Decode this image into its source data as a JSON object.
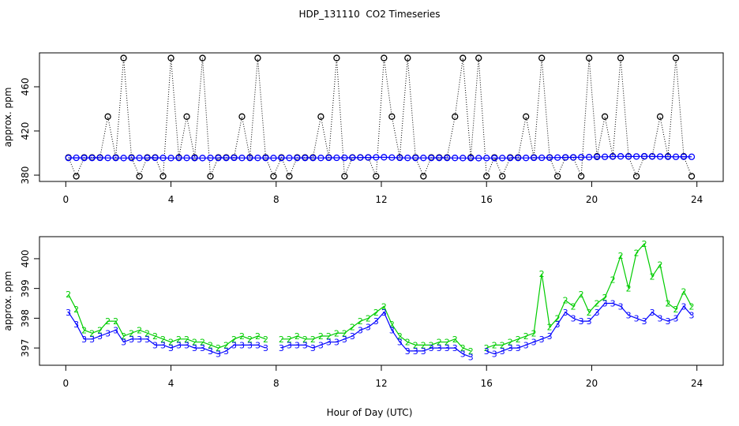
{
  "chart_data": [
    {
      "type": "scatter",
      "title": "HDP_131110  CO2 Timeseries",
      "ylabel": "approx. ppm",
      "x": [
        0.1,
        0.4,
        0.7,
        1.0,
        1.3,
        1.6,
        1.9,
        2.2,
        2.5,
        2.8,
        3.1,
        3.4,
        3.7,
        4.0,
        4.3,
        4.6,
        4.9,
        5.2,
        5.5,
        5.8,
        6.1,
        6.4,
        6.7,
        7.0,
        7.3,
        7.6,
        7.9,
        8.2,
        8.5,
        8.8,
        9.1,
        9.4,
        9.7,
        10.0,
        10.3,
        10.6,
        10.9,
        11.2,
        11.5,
        11.8,
        12.1,
        12.4,
        12.7,
        13.0,
        13.3,
        13.6,
        13.9,
        14.2,
        14.5,
        14.8,
        15.1,
        15.4,
        15.7,
        16.0,
        16.3,
        16.6,
        16.9,
        17.2,
        17.5,
        17.8,
        18.1,
        18.4,
        18.7,
        19.0,
        19.3,
        19.6,
        19.9,
        20.2,
        20.5,
        20.8,
        21.1,
        21.4,
        21.7,
        22.0,
        22.3,
        22.6,
        22.9,
        23.2,
        23.5,
        23.8
      ],
      "xlim": [
        -1,
        25
      ],
      "xticks": [
        0,
        4,
        8,
        12,
        16,
        20,
        24
      ],
      "ylim": [
        374.3,
        490.7
      ],
      "yticks": [
        380,
        420,
        460
      ],
      "series": [
        {
          "color": "#000000",
          "line": "dotted",
          "marker_shape": "circle",
          "values": [
            396,
            379,
            396,
            396,
            396,
            433,
            396,
            486,
            396,
            379,
            396,
            396,
            379,
            486,
            396,
            433,
            396,
            486,
            379,
            396,
            396,
            396,
            433,
            396,
            486,
            396,
            379,
            396,
            379,
            396,
            396,
            396,
            433,
            396,
            486,
            379,
            396,
            396,
            396,
            379,
            486,
            433,
            396,
            486,
            396,
            379,
            396,
            396,
            396,
            433,
            486,
            396,
            486,
            379,
            396,
            379,
            396,
            396,
            433,
            396,
            486,
            396,
            379,
            396,
            396,
            379,
            486,
            397,
            433,
            397,
            486,
            397,
            379,
            397,
            397,
            433,
            397,
            486,
            397,
            379
          ]
        },
        {
          "color": "#0000ff",
          "line": "solid",
          "marker_shape": "circle",
          "values": [
            395.6,
            395.7,
            395.6,
            395.6,
            395.7,
            395.6,
            395.6,
            395.5,
            395.6,
            395.6,
            395.6,
            395.7,
            395.6,
            395.5,
            395.6,
            395.6,
            395.5,
            395.5,
            395.6,
            395.6,
            395.6,
            395.7,
            395.6,
            395.6,
            395.6,
            395.6,
            395.5,
            395.6,
            395.6,
            395.6,
            395.6,
            395.6,
            395.6,
            395.7,
            395.7,
            395.7,
            395.8,
            395.9,
            396.0,
            396.1,
            396.2,
            395.9,
            395.7,
            395.6,
            395.6,
            395.6,
            395.6,
            395.6,
            395.6,
            395.6,
            395.5,
            395.5,
            395.4,
            395.5,
            395.5,
            395.5,
            395.6,
            395.6,
            395.6,
            395.7,
            395.7,
            395.8,
            395.9,
            396.1,
            396.1,
            396.2,
            396.3,
            396.5,
            396.6,
            396.8,
            397.0,
            396.9,
            396.9,
            397.0,
            396.9,
            396.8,
            396.7,
            396.6,
            396.7,
            396.6
          ]
        }
      ]
    },
    {
      "type": "scatter",
      "ylabel": "approx. ppm",
      "xlabel": "Hour of Day (UTC)",
      "x": [
        0.1,
        0.4,
        0.7,
        1.0,
        1.3,
        1.6,
        1.9,
        2.2,
        2.5,
        2.8,
        3.1,
        3.4,
        3.7,
        4.0,
        4.3,
        4.6,
        4.9,
        5.2,
        5.5,
        5.8,
        6.1,
        6.4,
        6.7,
        7.0,
        7.3,
        7.6,
        7.9,
        8.2,
        8.5,
        8.8,
        9.1,
        9.4,
        9.7,
        10.0,
        10.3,
        10.6,
        10.9,
        11.2,
        11.5,
        11.8,
        12.1,
        12.4,
        12.7,
        13.0,
        13.3,
        13.6,
        13.9,
        14.2,
        14.5,
        14.8,
        15.1,
        15.4,
        15.7,
        16.0,
        16.3,
        16.6,
        16.9,
        17.2,
        17.5,
        17.8,
        18.1,
        18.4,
        18.7,
        19.0,
        19.3,
        19.6,
        19.9,
        20.2,
        20.5,
        20.8,
        21.1,
        21.4,
        21.7,
        22.0,
        22.3,
        22.6,
        22.9,
        23.2,
        23.5,
        23.8
      ],
      "xlim": [
        -1,
        25
      ],
      "xticks": [
        0,
        4,
        8,
        12,
        16,
        20,
        24
      ],
      "ylim": [
        396.42,
        400.74
      ],
      "yticks": [
        397,
        398,
        399,
        400
      ],
      "series": [
        {
          "color": "#00cc00",
          "line": "solid",
          "marker_text": "2",
          "values": [
            398.8,
            398.3,
            397.6,
            397.5,
            397.6,
            397.9,
            397.9,
            397.4,
            397.5,
            397.6,
            397.5,
            397.4,
            397.3,
            397.2,
            397.3,
            397.3,
            397.2,
            397.2,
            397.1,
            397.0,
            397.1,
            397.3,
            397.4,
            397.3,
            397.4,
            397.3,
            null,
            397.3,
            397.3,
            397.4,
            397.3,
            397.3,
            397.4,
            397.4,
            397.5,
            397.5,
            397.7,
            397.9,
            398.0,
            398.2,
            398.4,
            397.8,
            397.4,
            397.2,
            397.1,
            397.1,
            397.1,
            397.2,
            397.2,
            397.3,
            397.0,
            396.9,
            null,
            397.0,
            397.1,
            397.1,
            397.2,
            397.3,
            397.4,
            397.5,
            399.5,
            397.7,
            398.0,
            398.6,
            398.4,
            398.8,
            398.2,
            398.5,
            398.7,
            399.3,
            400.1,
            399.0,
            400.2,
            400.5,
            399.4,
            399.8,
            398.5,
            398.3,
            398.9,
            398.4
          ]
        },
        {
          "color": "#0000ff",
          "line": "solid",
          "marker_text": "3",
          "values": [
            398.2,
            397.8,
            397.3,
            397.3,
            397.4,
            397.5,
            397.6,
            397.2,
            397.3,
            397.3,
            397.3,
            397.1,
            397.1,
            397.0,
            397.1,
            397.1,
            397.0,
            397.0,
            396.9,
            396.8,
            396.9,
            397.1,
            397.1,
            397.1,
            397.1,
            397.0,
            null,
            397.0,
            397.1,
            397.1,
            397.1,
            397.0,
            397.1,
            397.2,
            397.2,
            397.3,
            397.4,
            397.6,
            397.7,
            397.9,
            398.2,
            397.6,
            397.2,
            396.9,
            396.9,
            396.9,
            397.0,
            397.0,
            397.0,
            397.0,
            396.8,
            396.7,
            null,
            396.9,
            396.8,
            396.9,
            397.0,
            397.0,
            397.1,
            397.2,
            397.3,
            397.4,
            397.8,
            398.2,
            398.0,
            397.9,
            397.9,
            398.2,
            398.5,
            398.5,
            398.4,
            398.1,
            398.0,
            397.9,
            398.2,
            398.0,
            397.9,
            398.0,
            398.4,
            398.1
          ]
        }
      ]
    }
  ]
}
